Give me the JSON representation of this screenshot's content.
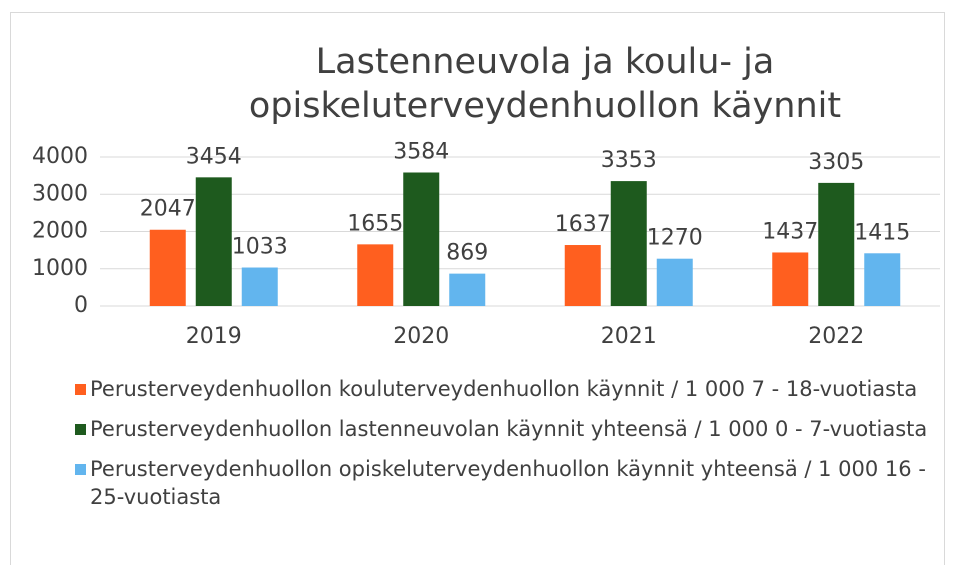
{
  "chart_data": {
    "type": "bar",
    "title": "Lastenneuvola ja koulu- ja opiskeluterveydenhuollon käynnit",
    "categories": [
      "2019",
      "2020",
      "2021",
      "2022"
    ],
    "series": [
      {
        "name": "Perusterveydenhuollon kouluterveydenhuollon käynnit / 1 000 7 - 18-vuotiasta",
        "color": "#ff5f1f",
        "values": [
          2047,
          1655,
          1637,
          1437
        ]
      },
      {
        "name": "Perusterveydenhuollon lastenneuvolan käynnit yhteensä / 1 000 0 - 7-vuotiasta",
        "color": "#1e5a1e",
        "values": [
          3454,
          3584,
          3353,
          3305
        ]
      },
      {
        "name": "Perusterveydenhuollon opiskeluterveydenhuollon käynnit yhteensä / 1 000 16 - 25-vuotiasta",
        "color": "#62b5ee",
        "values": [
          1033,
          869,
          1270,
          1415
        ]
      }
    ],
    "ylim": [
      0,
      4000
    ],
    "yticks": [
      0,
      1000,
      2000,
      3000,
      4000
    ],
    "grid": true,
    "legend": "bottom"
  }
}
